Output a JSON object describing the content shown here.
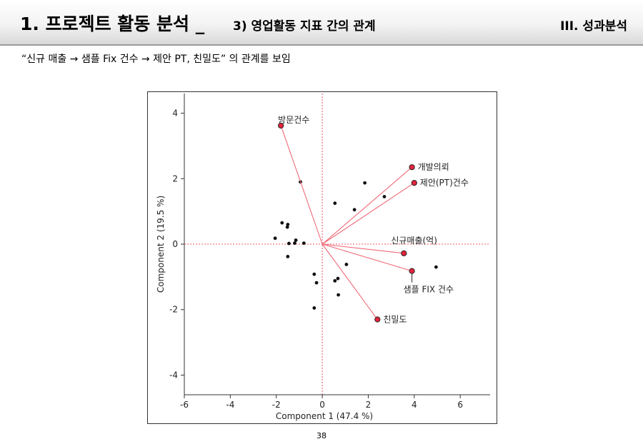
{
  "header": {
    "title_main": "1. 프로젝트 활동 분석 _",
    "title_sub": "3) 영업활동 지표 간의 관계",
    "section": "III. 성과분석"
  },
  "summary": "“신규 매출 → 샘플 Fix 건수 → 제안 PT, 친밀도” 의 관계를 보임",
  "page_number": "38",
  "chart_data": {
    "type": "scatter",
    "subtype": "pca-biplot",
    "xlabel": "Component 1 (47.4 %)",
    "ylabel": "Component 2  (19.5 %)",
    "xlim": [
      -6,
      7.3
    ],
    "ylim": [
      -4.6,
      4.6
    ],
    "xticks": [
      -6,
      -4,
      -2,
      0,
      2,
      4,
      6
    ],
    "yticks": [
      -4,
      -2,
      0,
      2,
      4
    ],
    "colors": {
      "vector": "#f06a78",
      "point": "#111111",
      "loading_fill": "#e8243c",
      "reference": "#e8243c"
    },
    "loadings": [
      {
        "label": "방문건수",
        "x": -1.8,
        "y": 3.62
      },
      {
        "label": "개발의뢰",
        "x": 3.9,
        "y": 2.35
      },
      {
        "label": "제안(PT)건수",
        "x": 4.0,
        "y": 1.87
      },
      {
        "label": "신규매출(억)",
        "x": 3.55,
        "y": -0.28
      },
      {
        "label": "샘플 FIX 건수",
        "x": 3.9,
        "y": -0.82
      },
      {
        "label": "친밀도",
        "x": 2.4,
        "y": -2.3
      }
    ],
    "points": [
      {
        "x": -0.95,
        "y": 1.9
      },
      {
        "x": 0.55,
        "y": 1.25
      },
      {
        "x": 1.4,
        "y": 1.05
      },
      {
        "x": 1.85,
        "y": 1.87
      },
      {
        "x": 2.7,
        "y": 1.45
      },
      {
        "x": -1.75,
        "y": 0.65
      },
      {
        "x": -1.5,
        "y": 0.6
      },
      {
        "x": -1.52,
        "y": 0.52
      },
      {
        "x": -2.05,
        "y": 0.18
      },
      {
        "x": -1.15,
        "y": 0.12
      },
      {
        "x": -1.45,
        "y": 0.02
      },
      {
        "x": -1.2,
        "y": 0.03
      },
      {
        "x": -0.8,
        "y": 0.03
      },
      {
        "x": -1.5,
        "y": -0.38
      },
      {
        "x": -0.35,
        "y": -0.92
      },
      {
        "x": -0.25,
        "y": -1.18
      },
      {
        "x": 0.55,
        "y": -1.12
      },
      {
        "x": 0.68,
        "y": -1.05
      },
      {
        "x": 1.05,
        "y": -0.62
      },
      {
        "x": 0.7,
        "y": -1.55
      },
      {
        "x": -0.35,
        "y": -1.95
      },
      {
        "x": 4.95,
        "y": -0.7
      }
    ]
  }
}
